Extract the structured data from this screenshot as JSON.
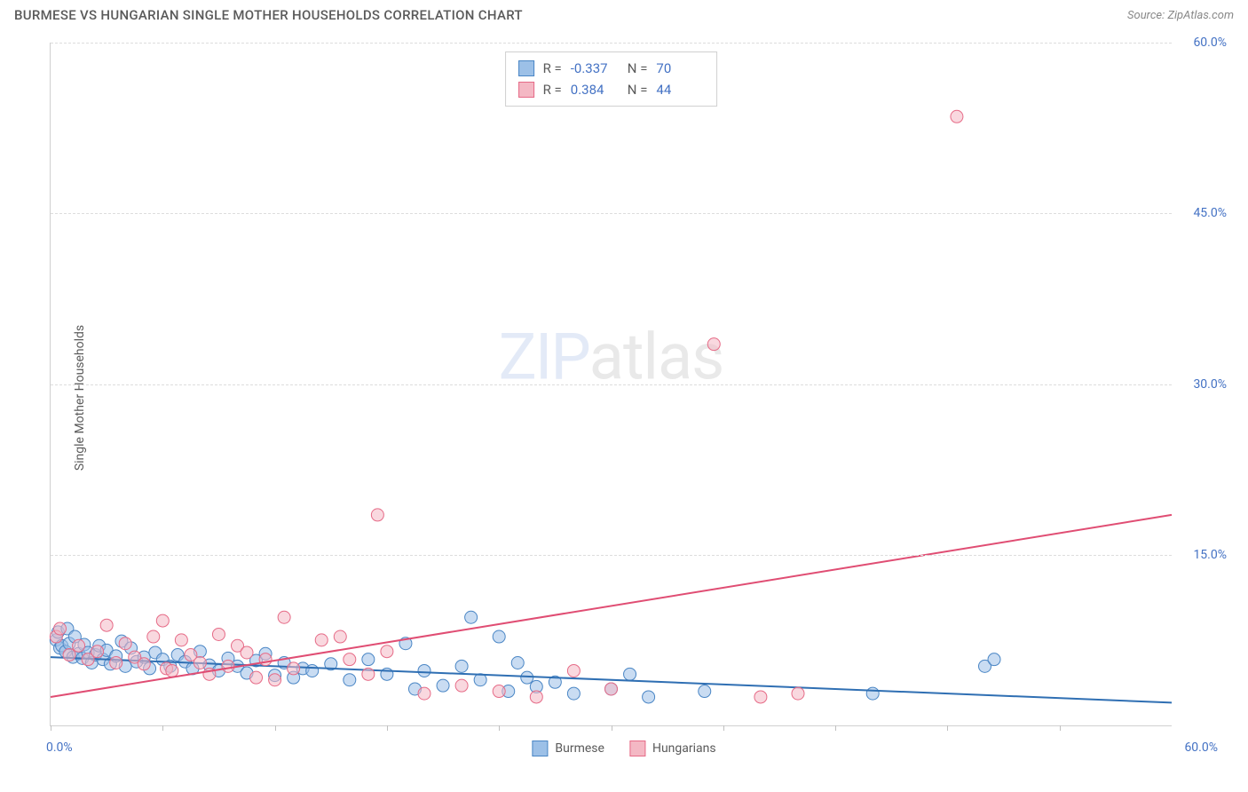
{
  "header": {
    "title": "BURMESE VS HUNGARIAN SINGLE MOTHER HOUSEHOLDS CORRELATION CHART",
    "source_prefix": "Source: ",
    "source_name": "ZipAtlas.com"
  },
  "chart": {
    "type": "scatter",
    "y_axis_title": "Single Mother Households",
    "xlim": [
      0,
      60
    ],
    "ylim": [
      0,
      60
    ],
    "x_tick_label_min": "0.0%",
    "x_tick_label_max": "60.0%",
    "x_ticks": [
      0,
      6,
      12,
      18,
      24,
      30,
      36,
      42,
      48,
      54
    ],
    "y_ticks": [
      {
        "value": 15,
        "label": "15.0%"
      },
      {
        "value": 30,
        "label": "30.0%"
      },
      {
        "value": 45,
        "label": "45.0%"
      },
      {
        "value": 60,
        "label": "60.0%"
      }
    ],
    "grid_color": "#dddddd",
    "background_color": "#ffffff",
    "marker_radius": 7,
    "marker_opacity": 0.55,
    "line_width": 2,
    "series": [
      {
        "name": "Burmese",
        "color_fill": "#9cc0e7",
        "color_stroke": "#4a86c5",
        "line_color": "#2f6fb3",
        "r_value": "-0.337",
        "n_value": "70",
        "trend": {
          "x1": 0,
          "y1": 6.0,
          "x2": 60,
          "y2": 2.0
        },
        "points": [
          [
            0.3,
            7.5
          ],
          [
            0.4,
            8.2
          ],
          [
            0.5,
            6.8
          ],
          [
            0.6,
            7.0
          ],
          [
            0.8,
            6.5
          ],
          [
            0.9,
            8.5
          ],
          [
            1.0,
            7.2
          ],
          [
            1.2,
            6.0
          ],
          [
            1.3,
            7.8
          ],
          [
            1.5,
            6.3
          ],
          [
            1.7,
            5.9
          ],
          [
            1.8,
            7.1
          ],
          [
            2.0,
            6.4
          ],
          [
            2.2,
            5.5
          ],
          [
            2.4,
            6.2
          ],
          [
            2.6,
            7.0
          ],
          [
            2.8,
            5.8
          ],
          [
            3.0,
            6.6
          ],
          [
            3.2,
            5.4
          ],
          [
            3.5,
            6.1
          ],
          [
            3.8,
            7.4
          ],
          [
            4.0,
            5.2
          ],
          [
            4.3,
            6.8
          ],
          [
            4.6,
            5.6
          ],
          [
            5.0,
            6.0
          ],
          [
            5.3,
            5.0
          ],
          [
            5.6,
            6.4
          ],
          [
            6.0,
            5.8
          ],
          [
            6.4,
            5.2
          ],
          [
            6.8,
            6.2
          ],
          [
            7.2,
            5.6
          ],
          [
            7.6,
            5.0
          ],
          [
            8.0,
            6.5
          ],
          [
            8.5,
            5.3
          ],
          [
            9.0,
            4.8
          ],
          [
            9.5,
            5.9
          ],
          [
            10.0,
            5.2
          ],
          [
            10.5,
            4.6
          ],
          [
            11.0,
            5.7
          ],
          [
            11.5,
            6.3
          ],
          [
            12.0,
            4.4
          ],
          [
            12.5,
            5.5
          ],
          [
            13.0,
            4.2
          ],
          [
            13.5,
            5.0
          ],
          [
            14.0,
            4.8
          ],
          [
            15.0,
            5.4
          ],
          [
            16.0,
            4.0
          ],
          [
            17.0,
            5.8
          ],
          [
            18.0,
            4.5
          ],
          [
            19.0,
            7.2
          ],
          [
            19.5,
            3.2
          ],
          [
            20.0,
            4.8
          ],
          [
            21.0,
            3.5
          ],
          [
            22.0,
            5.2
          ],
          [
            22.5,
            9.5
          ],
          [
            23.0,
            4.0
          ],
          [
            24.0,
            7.8
          ],
          [
            24.5,
            3.0
          ],
          [
            25.0,
            5.5
          ],
          [
            25.5,
            4.2
          ],
          [
            26.0,
            3.4
          ],
          [
            27.0,
            3.8
          ],
          [
            28.0,
            2.8
          ],
          [
            30.0,
            3.2
          ],
          [
            31.0,
            4.5
          ],
          [
            32.0,
            2.5
          ],
          [
            35.0,
            3.0
          ],
          [
            44.0,
            2.8
          ],
          [
            50.0,
            5.2
          ],
          [
            50.5,
            5.8
          ]
        ]
      },
      {
        "name": "Hungarians",
        "color_fill": "#f4b8c4",
        "color_stroke": "#e66b87",
        "line_color": "#e04d73",
        "r_value": "0.384",
        "n_value": "44",
        "trend": {
          "x1": 0,
          "y1": 2.5,
          "x2": 60,
          "y2": 18.5
        },
        "points": [
          [
            0.3,
            7.8
          ],
          [
            0.5,
            8.5
          ],
          [
            1.0,
            6.2
          ],
          [
            1.5,
            7.0
          ],
          [
            2.0,
            5.8
          ],
          [
            2.5,
            6.5
          ],
          [
            3.0,
            8.8
          ],
          [
            3.5,
            5.5
          ],
          [
            4.0,
            7.2
          ],
          [
            4.5,
            6.0
          ],
          [
            5.0,
            5.4
          ],
          [
            5.5,
            7.8
          ],
          [
            6.0,
            9.2
          ],
          [
            6.2,
            5.0
          ],
          [
            6.5,
            4.8
          ],
          [
            7.0,
            7.5
          ],
          [
            7.5,
            6.2
          ],
          [
            8.0,
            5.5
          ],
          [
            8.5,
            4.5
          ],
          [
            9.0,
            8.0
          ],
          [
            9.5,
            5.2
          ],
          [
            10.0,
            7.0
          ],
          [
            10.5,
            6.4
          ],
          [
            11.0,
            4.2
          ],
          [
            11.5,
            5.8
          ],
          [
            12.0,
            4.0
          ],
          [
            12.5,
            9.5
          ],
          [
            13.0,
            5.0
          ],
          [
            14.5,
            7.5
          ],
          [
            15.5,
            7.8
          ],
          [
            16.0,
            5.8
          ],
          [
            17.0,
            4.5
          ],
          [
            17.5,
            18.5
          ],
          [
            18.0,
            6.5
          ],
          [
            20.0,
            2.8
          ],
          [
            22.0,
            3.5
          ],
          [
            24.0,
            3.0
          ],
          [
            26.0,
            2.5
          ],
          [
            28.0,
            4.8
          ],
          [
            30.0,
            3.2
          ],
          [
            35.5,
            33.5
          ],
          [
            38.0,
            2.5
          ],
          [
            40.0,
            2.8
          ],
          [
            48.5,
            53.5
          ]
        ]
      }
    ],
    "legend": {
      "r_label": "R =",
      "n_label": "N ="
    },
    "series_legend_labels": [
      "Burmese",
      "Hungarians"
    ],
    "watermark": {
      "zip": "ZIP",
      "atlas": "atlas"
    }
  }
}
